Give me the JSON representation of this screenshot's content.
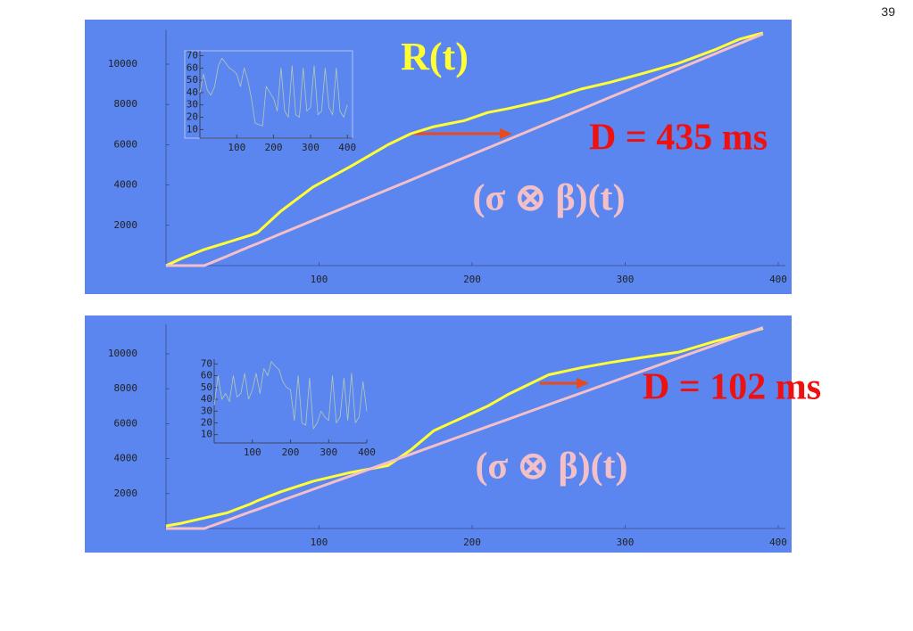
{
  "page_number": "39",
  "chart_data": [
    {
      "type": "line",
      "annotation": "D = 435 ms",
      "x": [
        0,
        10,
        25,
        40,
        55,
        60,
        75,
        96,
        120,
        145,
        160,
        175,
        195,
        210,
        224,
        250,
        271,
        290,
        312,
        335,
        358,
        375,
        390
      ],
      "series": [
        {
          "name": "R(t)",
          "color": "#ffff33",
          "values": [
            0,
            350,
            800,
            1150,
            1500,
            1650,
            2700,
            3900,
            4900,
            6000,
            6550,
            6900,
            7200,
            7600,
            7800,
            8250,
            8760,
            9100,
            9550,
            10050,
            10700,
            11250,
            11550
          ]
        },
        {
          "name": "(σ ⊗ β)(t)",
          "color": "#f4c0c8",
          "values": [
            0,
            0,
            0,
            470,
            950,
            1100,
            1580,
            2240,
            2990,
            3780,
            4250,
            4730,
            5360,
            5830,
            6270,
            7090,
            7750,
            8350,
            9040,
            9770,
            10490,
            11030,
            11500
          ]
        }
      ],
      "xlim": [
        0,
        400
      ],
      "ylim": [
        0,
        11700
      ],
      "xticks": [
        100,
        200,
        300,
        400
      ],
      "yticks": [
        2000,
        4000,
        6000,
        8000,
        10000
      ]
    },
    {
      "type": "line",
      "x": [
        0,
        10,
        20,
        30,
        40,
        50,
        60,
        70,
        80,
        90,
        100,
        110,
        120,
        130,
        140,
        150,
        160,
        170,
        180,
        190,
        200,
        210,
        220,
        230,
        240,
        250,
        260,
        270,
        280,
        290,
        300,
        310,
        320,
        330,
        340,
        350,
        360,
        370,
        380,
        390,
        400
      ],
      "values": [
        40,
        55,
        42,
        38,
        45,
        62,
        68,
        64,
        60,
        58,
        55,
        45,
        60,
        50,
        35,
        15,
        14,
        13,
        45,
        40,
        35,
        25,
        60,
        25,
        20,
        62,
        22,
        20,
        60,
        25,
        28,
        62,
        22,
        25,
        60,
        28,
        22,
        60,
        25,
        20,
        30
      ],
      "color": "#b4c8b0",
      "xlim": [
        0,
        414
      ],
      "ylim": [
        3,
        74
      ],
      "xticks": [
        100,
        200,
        300,
        400
      ],
      "yticks": [
        10,
        20,
        30,
        40,
        50,
        60,
        70
      ]
    },
    {
      "type": "line",
      "annotation": "D = 102 ms",
      "x": [
        0,
        10,
        25,
        40,
        55,
        60,
        75,
        96,
        120,
        145,
        160,
        175,
        195,
        210,
        224,
        250,
        271,
        290,
        312,
        335,
        358,
        375,
        390
      ],
      "series": [
        {
          "color": "#ffff33",
          "values": [
            150,
            300,
            600,
            900,
            1400,
            1600,
            2100,
            2700,
            3200,
            3600,
            4500,
            5600,
            6400,
            7000,
            7700,
            8800,
            9200,
            9500,
            9800,
            10100,
            10700,
            11100,
            11450
          ]
        },
        {
          "name": "(σ ⊗ β)(t)",
          "color": "#f4c0c8",
          "values": [
            0,
            0,
            0,
            470,
            950,
            1100,
            1580,
            2240,
            2990,
            3780,
            4250,
            4730,
            5360,
            5830,
            6270,
            7090,
            7750,
            8350,
            9040,
            9770,
            10490,
            11030,
            11500
          ]
        }
      ],
      "xlim": [
        0,
        400
      ],
      "ylim": [
        0,
        11700
      ],
      "xticks": [
        100,
        200,
        300,
        400
      ],
      "yticks": [
        2000,
        4000,
        6000,
        8000,
        10000
      ]
    },
    {
      "type": "line",
      "x": [
        0,
        10,
        20,
        30,
        40,
        50,
        60,
        70,
        80,
        90,
        100,
        110,
        120,
        130,
        140,
        150,
        160,
        170,
        180,
        190,
        200,
        210,
        220,
        230,
        240,
        250,
        260,
        270,
        280,
        290,
        300,
        310,
        320,
        330,
        340,
        350,
        360,
        370,
        380,
        390,
        400
      ],
      "values": [
        35,
        60,
        40,
        45,
        38,
        60,
        42,
        45,
        62,
        40,
        48,
        62,
        45,
        66,
        60,
        72,
        68,
        65,
        55,
        50,
        48,
        22,
        60,
        20,
        18,
        58,
        15,
        20,
        30,
        25,
        22,
        60,
        20,
        25,
        58,
        22,
        62,
        20,
        25,
        55,
        30
      ],
      "color": "#b4c8b0",
      "xlim": [
        0,
        400
      ],
      "ylim": [
        3,
        74
      ],
      "xticks": [
        100,
        200,
        300,
        400
      ],
      "yticks": [
        10,
        20,
        30,
        40,
        50,
        60,
        70
      ]
    }
  ]
}
